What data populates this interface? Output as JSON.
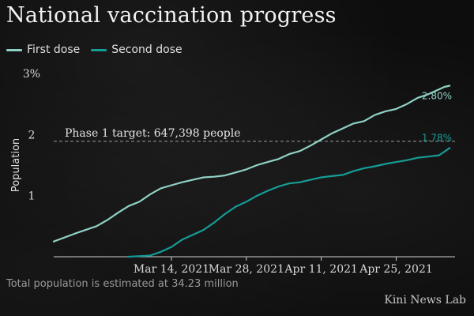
{
  "chart_data": {
    "type": "line",
    "title": "National vaccination progress",
    "xlabel": "",
    "ylabel": "Population",
    "ylim": [
      0,
      3
    ],
    "yticks": [
      {
        "value": 1,
        "label": "1"
      },
      {
        "value": 2,
        "label": "2"
      },
      {
        "value": 3,
        "label": "3%"
      }
    ],
    "xticks": [
      {
        "value": 12,
        "label": "Mar 14, 2021"
      },
      {
        "value": 26,
        "label": "Mar 28, 2021"
      },
      {
        "value": 40,
        "label": "Apr 11, 2021"
      },
      {
        "value": 54,
        "label": "Apr 25, 2021"
      }
    ],
    "xlim": [
      -10,
      65
    ],
    "grid": false,
    "legend": "top-left",
    "target": {
      "value": 1.89,
      "label": "Phase 1 target: 647,398 people"
    },
    "series": [
      {
        "name": "First dose",
        "color": "#8fd1c5",
        "end_label": "2.80%",
        "x": [
          -10,
          -6,
          -2,
          0,
          2,
          4,
          6,
          8,
          10,
          12,
          14,
          16,
          18,
          20,
          22,
          24,
          26,
          28,
          30,
          32,
          34,
          36,
          38,
          40,
          42,
          44,
          46,
          48,
          50,
          52,
          54,
          56,
          58,
          60,
          62,
          63,
          64
        ],
        "y": [
          0.25,
          0.38,
          0.5,
          0.6,
          0.72,
          0.83,
          0.9,
          1.02,
          1.12,
          1.17,
          1.22,
          1.26,
          1.3,
          1.31,
          1.33,
          1.38,
          1.43,
          1.5,
          1.55,
          1.6,
          1.68,
          1.73,
          1.82,
          1.92,
          2.02,
          2.1,
          2.18,
          2.22,
          2.32,
          2.38,
          2.42,
          2.5,
          2.6,
          2.66,
          2.74,
          2.78,
          2.8
        ]
      },
      {
        "name": "Second dose",
        "color": "#169c96",
        "end_label": "1.78%",
        "x": [
          4,
          6,
          8,
          10,
          12,
          14,
          16,
          18,
          20,
          22,
          24,
          26,
          28,
          30,
          32,
          34,
          36,
          38,
          40,
          42,
          44,
          46,
          48,
          50,
          52,
          54,
          56,
          58,
          60,
          62,
          63,
          64
        ],
        "y": [
          0.0,
          0.01,
          0.02,
          0.08,
          0.16,
          0.28,
          0.36,
          0.44,
          0.56,
          0.7,
          0.82,
          0.9,
          1.0,
          1.08,
          1.15,
          1.2,
          1.22,
          1.26,
          1.3,
          1.32,
          1.34,
          1.4,
          1.45,
          1.48,
          1.52,
          1.55,
          1.58,
          1.62,
          1.64,
          1.66,
          1.72,
          1.78
        ]
      }
    ]
  },
  "note": "Total population is estimated at 34.23 million",
  "credit": "Kini News Lab"
}
